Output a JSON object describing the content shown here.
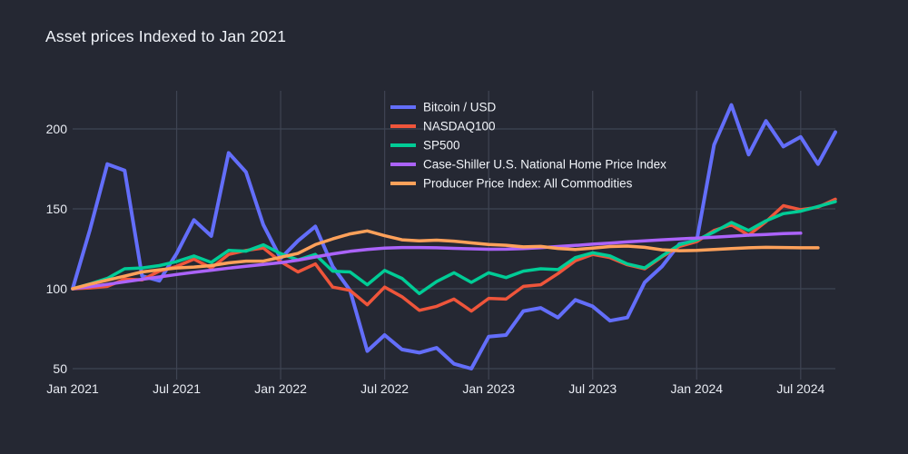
{
  "header": {
    "title": "Asset prices Indexed to Jan 2021"
  },
  "theme": {
    "background": "#252833",
    "grid_color": "#3f4453",
    "tick_color": "#e8ebf2",
    "title_color": "#f0f3f9"
  },
  "chart_data": {
    "type": "line",
    "title": "Asset prices Indexed to Jan 2021",
    "xlabel": "",
    "ylabel": "",
    "index_base": "Jan 2021 = 100",
    "grid": true,
    "legend_position": "top-right-inside",
    "ylim": [
      43,
      224
    ],
    "y_ticks": [
      50,
      100,
      150,
      200
    ],
    "x_ticks": [
      {
        "label": "Jan 2021",
        "index": 0,
        "grid": false
      },
      {
        "label": "Jul 2021",
        "index": 6,
        "grid": true
      },
      {
        "label": "Jan 2022",
        "index": 12,
        "grid": true
      },
      {
        "label": "Jul 2022",
        "index": 18,
        "grid": true
      },
      {
        "label": "Jan 2023",
        "index": 24,
        "grid": true
      },
      {
        "label": "Jul 2023",
        "index": 30,
        "grid": true
      },
      {
        "label": "Jan 2024",
        "index": 36,
        "grid": true
      },
      {
        "label": "Jul 2024",
        "index": 42,
        "grid": true
      }
    ],
    "x": [
      "Jan 2021",
      "Feb 2021",
      "Mar 2021",
      "Apr 2021",
      "May 2021",
      "Jun 2021",
      "Jul 2021",
      "Aug 2021",
      "Sep 2021",
      "Oct 2021",
      "Nov 2021",
      "Dec 2021",
      "Jan 2022",
      "Feb 2022",
      "Mar 2022",
      "Apr 2022",
      "May 2022",
      "Jun 2022",
      "Jul 2022",
      "Aug 2022",
      "Sep 2022",
      "Oct 2022",
      "Nov 2022",
      "Dec 2022",
      "Jan 2023",
      "Feb 2023",
      "Mar 2023",
      "Apr 2023",
      "May 2023",
      "Jun 2023",
      "Jul 2023",
      "Aug 2023",
      "Sep 2023",
      "Oct 2023",
      "Nov 2023",
      "Dec 2023",
      "Jan 2024",
      "Feb 2024",
      "Mar 2024",
      "Apr 2024",
      "May 2024",
      "Jun 2024",
      "Jul 2024",
      "Aug 2024",
      "Sep 2024"
    ],
    "series": [
      {
        "name": "Bitcoin / USD",
        "color": "#636EFA",
        "width": 4,
        "values": [
          100,
          137,
          178,
          174,
          108,
          105,
          122,
          143,
          133,
          185,
          173,
          140,
          119,
          130,
          139,
          114,
          99,
          61,
          71,
          62,
          60,
          63,
          53,
          50,
          70,
          71,
          86,
          88,
          82,
          93,
          89,
          80,
          82,
          104,
          114,
          128,
          130,
          190,
          215,
          184,
          205,
          189,
          195,
          178,
          198
        ]
      },
      {
        "name": "NASDAQ100",
        "color": "#EF553B",
        "width": 3.5,
        "values": [
          100,
          100.5,
          101.5,
          106,
          105.5,
          111,
          114,
          118.5,
          113,
          121.5,
          124,
          125.5,
          117,
          110.5,
          115.5,
          101,
          99,
          90,
          101,
          95,
          86.5,
          89,
          93.5,
          86,
          94,
          93.5,
          101.5,
          102.5,
          109.5,
          117.5,
          121.5,
          119.5,
          115,
          112.5,
          120,
          126.5,
          129.5,
          136.5,
          140,
          133.5,
          142,
          152,
          149.5,
          151,
          156
        ]
      },
      {
        "name": "SP500",
        "color": "#00CC96",
        "width": 3.5,
        "values": [
          100,
          103,
          106.5,
          112.5,
          113,
          114.5,
          117,
          120.5,
          116.5,
          124,
          123.5,
          127.5,
          122,
          118,
          121.5,
          111,
          110.5,
          102.5,
          111.5,
          106.5,
          97,
          104.5,
          110,
          104,
          110,
          107,
          111,
          112.5,
          112,
          119.5,
          122.5,
          120.5,
          115.5,
          113,
          120.5,
          127.5,
          130.5,
          135.5,
          141.5,
          136.5,
          142.5,
          147,
          148.5,
          151.5,
          154.5
        ]
      },
      {
        "name": "Case-Shiller U.S. National Home Price Index",
        "color": "#AB63FA",
        "width": 3.5,
        "values": [
          100,
          101.3,
          102.7,
          104.3,
          105.9,
          107.4,
          108.9,
          110.3,
          111.6,
          112.9,
          114.1,
          115.2,
          116.3,
          117.9,
          119.9,
          121.8,
          123.4,
          124.6,
          125.4,
          125.8,
          125.8,
          125.6,
          125.3,
          125,
          124.7,
          124.8,
          125.1,
          125.7,
          126.4,
          127.1,
          127.9,
          128.6,
          129.3,
          130,
          130.6,
          131.2,
          131.7,
          132.3,
          132.9,
          133.5,
          134,
          134.5,
          134.8
        ]
      },
      {
        "name": "Producer Price Index: All Commodities",
        "color": "#FFA15A",
        "width": 3.5,
        "values": [
          100,
          102.9,
          105.4,
          107.9,
          110.5,
          111.8,
          113,
          113.6,
          114.5,
          116.2,
          117.3,
          117.3,
          119.7,
          122.1,
          127.6,
          131.2,
          134.3,
          136.2,
          133.2,
          130.6,
          130,
          130.4,
          129.8,
          128.7,
          127.7,
          127.2,
          126.2,
          126.5,
          125.2,
          124.6,
          125.4,
          126.4,
          126.7,
          125.9,
          124.4,
          123.8,
          124,
          124.6,
          125.1,
          125.6,
          125.9,
          125.8,
          125.6,
          125.6
        ]
      }
    ]
  }
}
